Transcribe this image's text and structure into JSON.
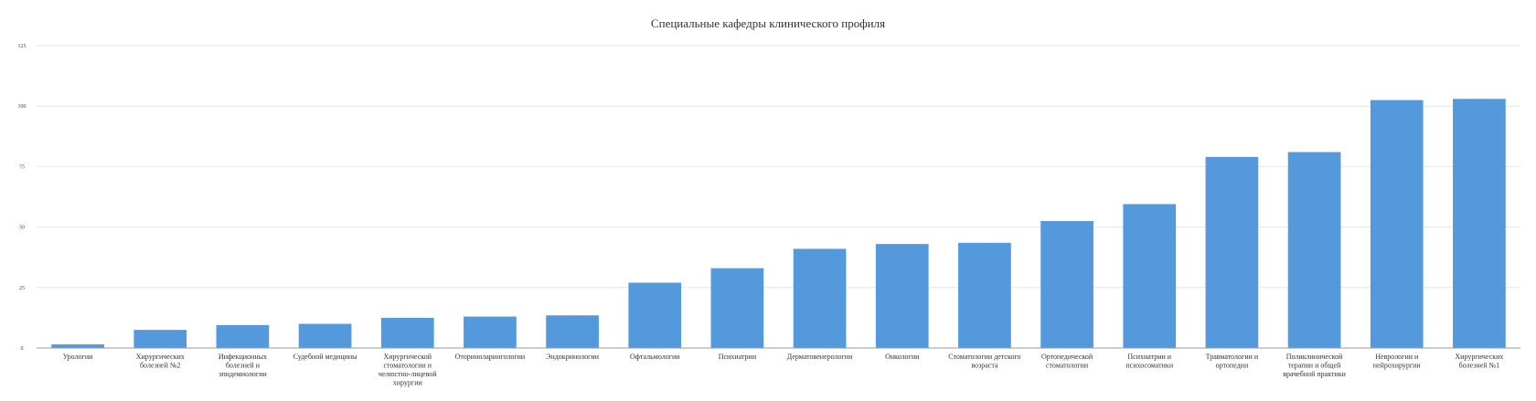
{
  "chart_data": {
    "type": "bar",
    "title": "Специальные кафедры клинического профиля",
    "xlabel": "",
    "ylabel": "",
    "ylim": [
      0,
      125
    ],
    "yticks": [
      "0",
      "25",
      "50",
      "75",
      "100",
      "125"
    ],
    "grid": true,
    "legend": "none",
    "bar_color": "#5599dd",
    "categories": [
      "Урологии",
      "Хирургических болезней №2",
      "Инфекционных болезней и эпидемиологии",
      "Судебной медицины",
      "Хирургической стоматологии и челюстно-лицевой хирургии",
      "Оториноларингологии",
      "Эндокринологии",
      "Офтальмологии",
      "Психиатрии",
      "Дерматовенерологии",
      "Онкологии",
      "Стоматологии детского возраста",
      "Ортопедической стоматологии",
      "Психиатрии и психосоматики",
      "Травматологии и ортопедии",
      "Поликлинической терапии и общей врачебной практики",
      "Неврологии и нейрохирургии",
      "Хирургических болезней №1"
    ],
    "category_lines": [
      [
        "Урологии"
      ],
      [
        "Хирургических",
        "болезней №2"
      ],
      [
        "Инфекционных",
        "болезней и",
        "эпидемиологии"
      ],
      [
        "Судебной медицины"
      ],
      [
        "Хирургической",
        "стоматологии и",
        "челюстно-лицевой",
        "хирургии"
      ],
      [
        "Оториноларингологии"
      ],
      [
        "Эндокринологии"
      ],
      [
        "Офтальмологии"
      ],
      [
        "Психиатрии"
      ],
      [
        "Дерматовенерологии"
      ],
      [
        "Онкологии"
      ],
      [
        "Стоматологии детского",
        "возраста"
      ],
      [
        "Ортопедической",
        "стоматологии"
      ],
      [
        "Психиатрии и",
        "психосоматики"
      ],
      [
        "Травматологии и",
        "ортопедии"
      ],
      [
        "Поликлинической",
        "терапии и общей",
        "врачебной практики"
      ],
      [
        "Неврологии и",
        "нейрохирургии"
      ],
      [
        "Хирургических",
        "болезней №1"
      ]
    ],
    "values": [
      1.5,
      7.5,
      9.5,
      10,
      12.5,
      13,
      13.5,
      27,
      33,
      41,
      43,
      43.5,
      52.5,
      59.5,
      79,
      81,
      102.5,
      103
    ]
  }
}
